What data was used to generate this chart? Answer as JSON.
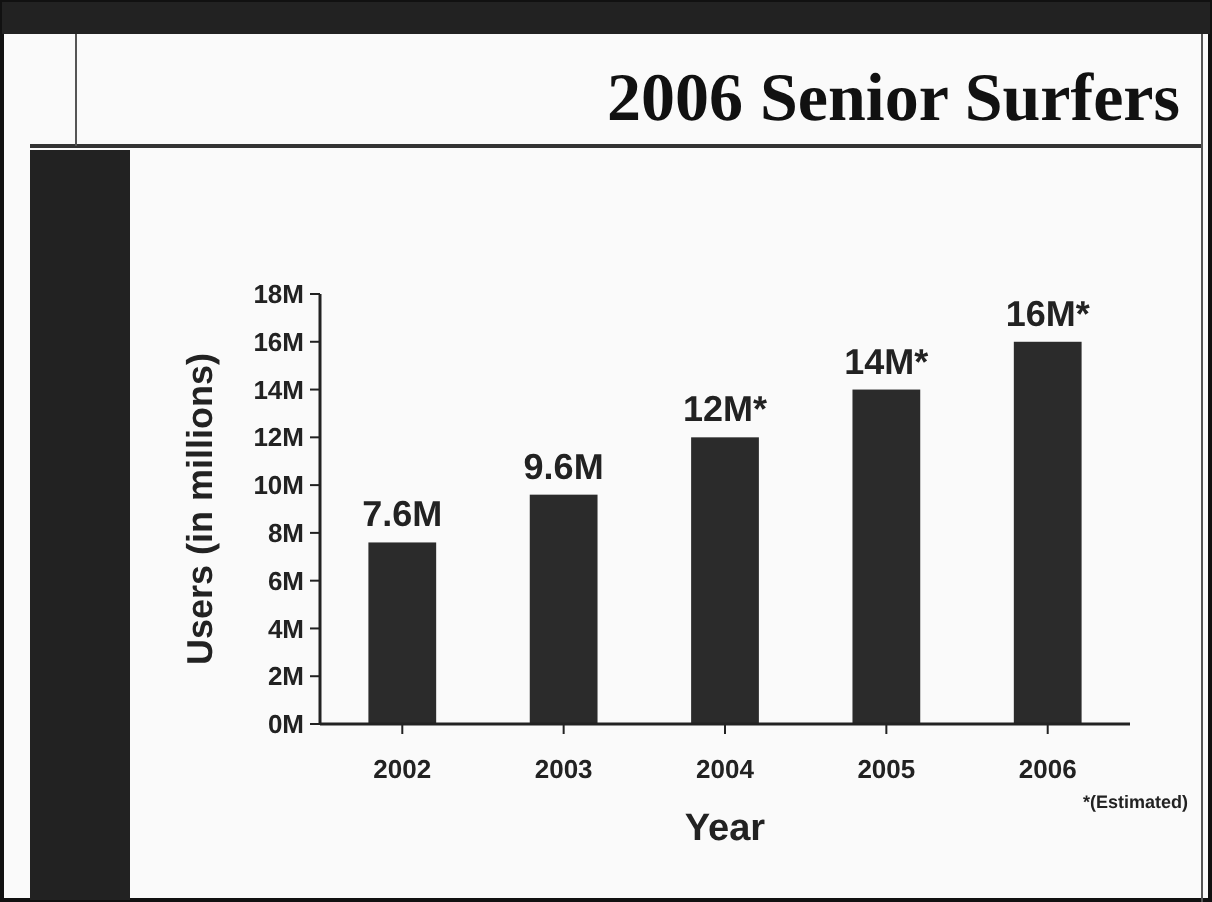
{
  "chart_data": {
    "type": "bar",
    "title": "2006 Senior Surfers",
    "xlabel": "Year",
    "ylabel": "Users (in millions)",
    "categories": [
      "2002",
      "2003",
      "2004",
      "2005",
      "2006"
    ],
    "values": [
      7.6,
      9.6,
      12,
      14,
      16
    ],
    "value_labels": [
      "7.6M",
      "9.6M",
      "12M*",
      "14M*",
      "16M*"
    ],
    "color": "#2b2b2b",
    "ylim": [
      0,
      18
    ],
    "yticks": [
      {
        "value": 0,
        "label": "0M"
      },
      {
        "value": 2,
        "label": "2M"
      },
      {
        "value": 4,
        "label": "4M"
      },
      {
        "value": 6,
        "label": "6M"
      },
      {
        "value": 8,
        "label": "8M"
      },
      {
        "value": 10,
        "label": "10M"
      },
      {
        "value": 12,
        "label": "12M"
      },
      {
        "value": 14,
        "label": "14M"
      },
      {
        "value": 16,
        "label": "16M"
      },
      {
        "value": 18,
        "label": "18M"
      }
    ],
    "annotations": [
      "*(Estimated)"
    ]
  }
}
